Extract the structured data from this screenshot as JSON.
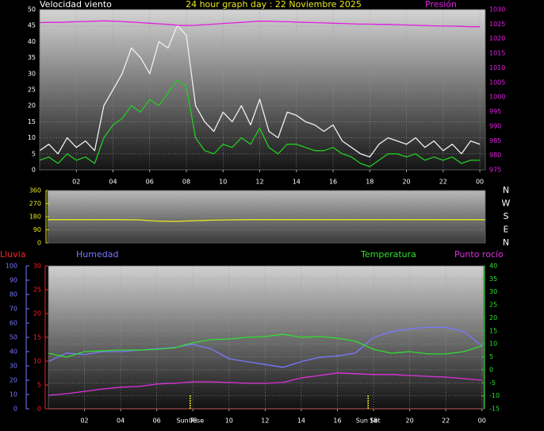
{
  "chart_data": [
    {
      "type": "line",
      "title": "24 hour graph day : 22 Noviembre 2025",
      "y_label": "Velocidad viento",
      "y2_label": "Presión",
      "x": [
        0,
        0.5,
        1,
        1.5,
        2,
        2.5,
        3,
        3.5,
        4,
        4.5,
        5,
        5.5,
        6,
        6.5,
        7,
        7.5,
        8,
        8.5,
        9,
        9.5,
        10,
        10.5,
        11,
        11.5,
        12,
        12.5,
        13,
        13.5,
        14,
        14.5,
        15,
        15.5,
        16,
        16.5,
        17,
        17.5,
        18,
        18.5,
        19,
        19.5,
        20,
        20.5,
        21,
        21.5,
        22,
        22.5,
        23,
        23.5,
        24
      ],
      "xlim": [
        0,
        24.3
      ],
      "xticks": [
        {
          "value": 2,
          "label": "02"
        },
        {
          "value": 4,
          "label": "04"
        },
        {
          "value": 6,
          "label": "06"
        },
        {
          "value": 8,
          "label": "08"
        },
        10,
        12,
        14,
        16,
        18,
        20,
        22,
        {
          "value": 24,
          "label": "00"
        }
      ],
      "ylim": [
        0,
        50
      ],
      "yticks": [
        0,
        5,
        10,
        15,
        20,
        25,
        30,
        35,
        40,
        45,
        50
      ],
      "y2lim": [
        975,
        1030
      ],
      "y2ticks": [
        975,
        980,
        985,
        990,
        995,
        1000,
        1005,
        1010,
        1015,
        1020,
        1025,
        1030
      ],
      "grid": true,
      "series": [
        {
          "color": "#f0f0f0",
          "values": [
            6,
            8,
            5,
            10,
            7,
            9,
            6,
            20,
            25,
            30,
            38,
            35,
            30,
            40,
            38,
            45,
            42,
            20,
            15,
            12,
            18,
            15,
            20,
            14,
            22,
            12,
            10,
            18,
            17,
            15,
            14,
            12,
            14,
            9,
            7,
            5,
            4,
            8,
            10,
            9,
            8,
            10,
            7,
            9,
            6,
            8,
            5,
            9,
            8
          ]
        },
        {
          "color": "#22cc22",
          "values": [
            3,
            4,
            2,
            5,
            3,
            4,
            2,
            10,
            14,
            16,
            20,
            18,
            22,
            20,
            24,
            28,
            26,
            10,
            6,
            5,
            8,
            7,
            10,
            8,
            13,
            7,
            5,
            8,
            8,
            7,
            6,
            6,
            7,
            5,
            4,
            2,
            1,
            3,
            5,
            5,
            4,
            5,
            3,
            4,
            3,
            4,
            2,
            3,
            3
          ]
        },
        {
          "color": "#e020e0",
          "axis": "y2",
          "values": [
            1025.5,
            1025.6,
            1025.6,
            1025.7,
            1025.8,
            1025.9,
            1026,
            1026.1,
            1026,
            1025.9,
            1025.7,
            1025.5,
            1025.3,
            1025.1,
            1024.9,
            1024.6,
            1024.5,
            1024.6,
            1024.8,
            1025,
            1025.2,
            1025.4,
            1025.6,
            1025.8,
            1026,
            1026,
            1025.9,
            1025.8,
            1025.7,
            1025.6,
            1025.5,
            1025.4,
            1025.3,
            1025.2,
            1025.1,
            1025,
            1025,
            1024.9,
            1024.9,
            1024.8,
            1024.7,
            1024.6,
            1024.5,
            1024.4,
            1024.3,
            1024.3,
            1024.2,
            1024.1,
            1024.1
          ]
        }
      ]
    },
    {
      "type": "line",
      "x": [
        0,
        1,
        2,
        3,
        4,
        5,
        6,
        7,
        8,
        9,
        10,
        11,
        12,
        13,
        14,
        15,
        16,
        17,
        18,
        19,
        20,
        21,
        22,
        23,
        24
      ],
      "xlim": [
        0,
        24
      ],
      "ylim": [
        0,
        360
      ],
      "yticks": [
        0,
        90,
        180,
        270,
        360
      ],
      "grid": true,
      "compass_labels": [
        "N",
        "W",
        "S",
        "E",
        "N"
      ],
      "series": [
        {
          "color": "#e8e820",
          "values": [
            160,
            160,
            160,
            160,
            160,
            158,
            150,
            148,
            152,
            156,
            158,
            160,
            160,
            160,
            160,
            160,
            160,
            160,
            160,
            160,
            160,
            160,
            160,
            160,
            160
          ]
        }
      ]
    },
    {
      "type": "line",
      "x": [
        0,
        1,
        2,
        3,
        4,
        5,
        6,
        7,
        8,
        9,
        10,
        11,
        12,
        13,
        14,
        15,
        16,
        17,
        18,
        19,
        20,
        21,
        22,
        23,
        24
      ],
      "xlim": [
        0,
        24.1
      ],
      "xticks": [
        {
          "value": 2,
          "label": "02"
        },
        {
          "value": 4,
          "label": "04"
        },
        {
          "value": 6,
          "label": "06"
        },
        {
          "value": 8,
          "label": "08"
        },
        10,
        12,
        14,
        16,
        18,
        20,
        22,
        {
          "value": 24,
          "label": "00"
        }
      ],
      "ylim": [
        0,
        30
      ],
      "yticks": [
        0,
        5,
        10,
        15,
        20,
        25,
        30
      ],
      "y3lim": [
        0,
        100
      ],
      "y3ticks": [
        0,
        10,
        20,
        30,
        40,
        50,
        60,
        70,
        80,
        90,
        100
      ],
      "y2lim": [
        -15,
        40
      ],
      "y2ticks": [
        -15,
        -10,
        -5,
        0,
        5,
        10,
        15,
        20,
        25,
        30,
        35,
        40
      ],
      "grid": true,
      "annotations": [
        {
          "text": "Sun Rise",
          "x": 7.85
        },
        {
          "text": "Sun Set",
          "x": 17.7
        }
      ],
      "series": [
        {
          "name": "Lluvia",
          "color": "#ff2020",
          "axis": "y",
          "values": [
            0,
            0,
            0,
            0,
            0,
            0,
            0,
            0,
            0,
            0,
            0,
            0,
            0,
            0,
            0,
            0,
            0,
            0,
            0,
            0,
            0,
            0,
            0,
            0,
            0
          ]
        },
        {
          "name": "Humedad",
          "color": "#7878ff",
          "axis": "y3",
          "values": [
            33,
            39,
            38,
            40,
            40,
            41,
            42,
            43,
            45,
            42,
            35,
            33,
            31,
            29,
            33,
            36,
            37,
            39,
            50,
            54,
            56,
            57,
            57,
            54,
            44
          ]
        },
        {
          "name": "Temperatura",
          "color": "#30e030",
          "axis": "y2",
          "values": [
            6.4,
            4.9,
            7,
            7.3,
            7.6,
            7.6,
            7.9,
            8.5,
            10.4,
            11.6,
            11.9,
            12.5,
            12.8,
            13.7,
            12.5,
            12.8,
            12.2,
            11,
            7.9,
            6.4,
            7,
            6.1,
            6.1,
            7,
            9.2
          ]
        },
        {
          "name": "Punto rocío",
          "color": "#e030e0",
          "axis": "y2",
          "values": [
            -9.8,
            -9.2,
            -8.3,
            -7.4,
            -6.7,
            -6.4,
            -5.5,
            -5.2,
            -4.6,
            -4.6,
            -4.9,
            -5.2,
            -5.2,
            -4.9,
            -3.1,
            -2.2,
            -1.2,
            -1.5,
            -1.8,
            -1.8,
            -2.2,
            -2.5,
            -2.8,
            -3.4,
            -4
          ]
        }
      ]
    }
  ]
}
